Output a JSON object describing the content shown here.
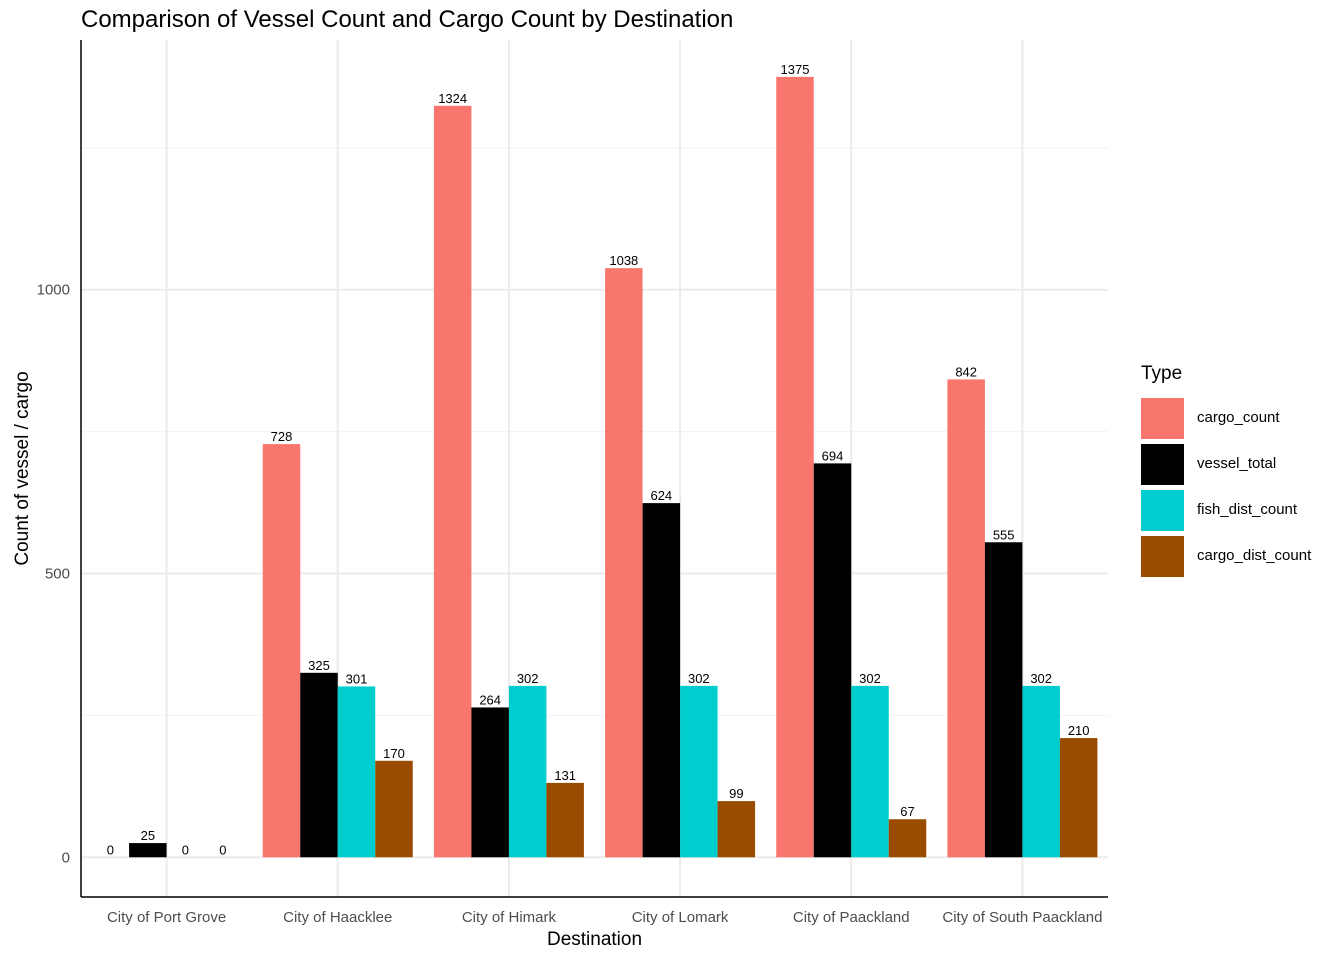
{
  "chart_data": {
    "type": "bar",
    "title": "Comparison of Vessel Count and Cargo Count by Destination",
    "xlabel": "Destination",
    "ylabel": "Count of vessel / cargo",
    "categories": [
      "City of Port Grove",
      "City of Haacklee",
      "City of Himark",
      "City of Lomark",
      "City of Paackland",
      "City of South Paackland"
    ],
    "series": [
      {
        "name": "cargo_count",
        "color": "#F8766D",
        "values": [
          0,
          728,
          1324,
          1038,
          1375,
          842
        ]
      },
      {
        "name": "vessel_total",
        "color": "#000000",
        "values": [
          25,
          325,
          264,
          624,
          694,
          555
        ]
      },
      {
        "name": "fish_dist_count",
        "color": "#00CDCD",
        "values": [
          0,
          301,
          302,
          302,
          302,
          302
        ]
      },
      {
        "name": "cargo_dist_count",
        "color": "#994C00",
        "values": [
          0,
          170,
          131,
          99,
          67,
          210
        ]
      }
    ],
    "y_ticks": [
      0,
      500,
      1000
    ],
    "ylim": [
      -70,
      1440
    ],
    "grid": true,
    "legend": {
      "title": "Type",
      "position": "right"
    }
  }
}
